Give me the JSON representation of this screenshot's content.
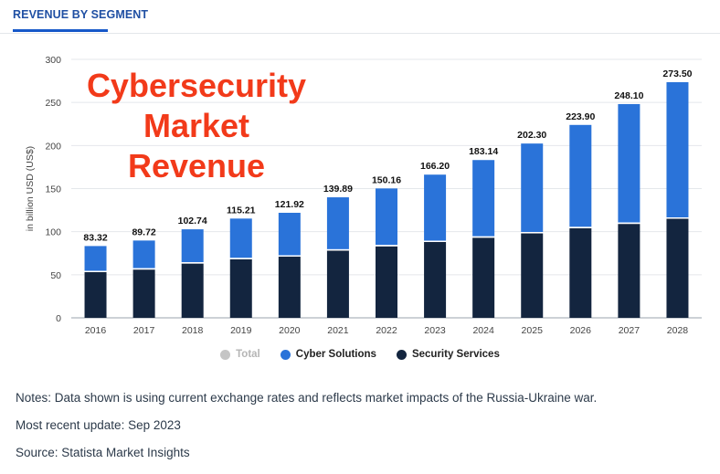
{
  "header": {
    "tab_label": "REVENUE BY SEGMENT"
  },
  "overlay_title": {
    "line1": "Cybersecurity",
    "line2": "Market",
    "line3": "Revenue"
  },
  "notes": {
    "line1": "Notes: Data shown is using current exchange rates and reflects market impacts of the Russia-Ukraine war.",
    "line2": "Most recent update: Sep 2023",
    "line3": "Source: Statista Market Insights"
  },
  "colors": {
    "cyber_solutions": "#2a73d9",
    "security_services": "#13253f",
    "total": "#c5c5c5",
    "overlay_title": "#f23a1a",
    "tab_accent": "#1658c9"
  },
  "chart_data": {
    "type": "bar",
    "stacked": true,
    "categories": [
      "2016",
      "2017",
      "2018",
      "2019",
      "2020",
      "2021",
      "2022",
      "2023",
      "2024",
      "2025",
      "2026",
      "2027",
      "2028"
    ],
    "totals": [
      83.32,
      89.72,
      102.74,
      115.21,
      121.92,
      139.89,
      150.16,
      166.2,
      183.14,
      202.3,
      223.9,
      248.1,
      273.5
    ],
    "total_labels": [
      "83.32",
      "89.72",
      "102.74",
      "115.21",
      "121.92",
      "139.89",
      "150.16",
      "166.20",
      "183.14",
      "202.30",
      "223.90",
      "248.10",
      "273.50"
    ],
    "series": [
      {
        "name": "Security Services",
        "values": [
          53,
          56,
          63,
          68,
          71,
          78,
          83,
          88,
          93,
          98,
          104,
          109,
          115
        ]
      },
      {
        "name": "Cyber Solutions",
        "values": [
          30.32,
          33.72,
          39.74,
          47.21,
          50.92,
          61.89,
          67.16,
          78.2,
          90.14,
          104.3,
          119.9,
          139.1,
          158.5
        ]
      }
    ],
    "legend": [
      "Total",
      "Cyber Solutions",
      "Security Services"
    ],
    "ylabel": "in billion USD (US$)",
    "ylim": [
      0,
      300
    ],
    "yticks": [
      0,
      50,
      100,
      150,
      200,
      250,
      300
    ],
    "grid": true,
    "legend_position": "bottom"
  }
}
